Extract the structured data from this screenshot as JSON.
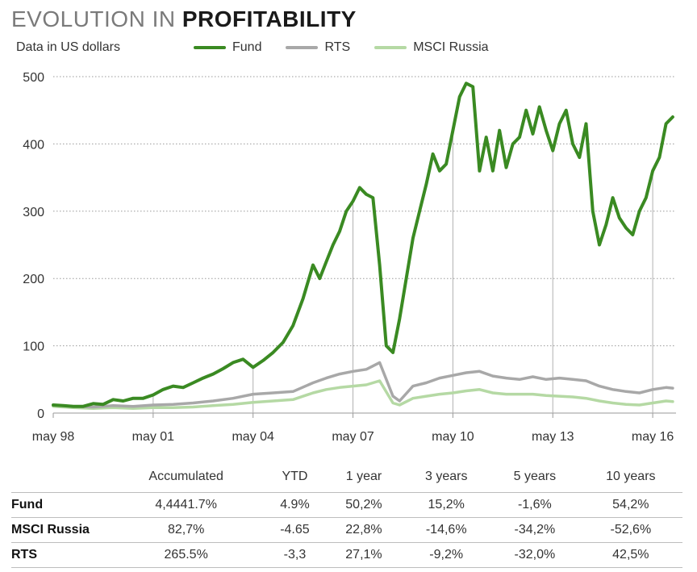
{
  "header": {
    "title_light": "EVOLUTION IN ",
    "title_bold": "PROFITABILITY",
    "subtitle": "Data in US dollars"
  },
  "colors": {
    "fund": "#3a8a22",
    "rts": "#a8a8a8",
    "msci": "#b5d9a4",
    "grid": "#9a9a9a",
    "vline": "#b0b0b0"
  },
  "chart_data": {
    "type": "line",
    "xlabel": "",
    "ylabel": "",
    "ylim": [
      0,
      500
    ],
    "yticks": [
      "0",
      "100",
      "200",
      "300",
      "400",
      "500"
    ],
    "xlim": [
      1998.4,
      2017.1
    ],
    "xticks": [
      {
        "x": 1998.4,
        "label": "may 98"
      },
      {
        "x": 2001.4,
        "label": "may 01"
      },
      {
        "x": 2004.4,
        "label": "may 04"
      },
      {
        "x": 2007.4,
        "label": "may 07"
      },
      {
        "x": 2010.4,
        "label": "may 10"
      },
      {
        "x": 2013.4,
        "label": "may 13"
      },
      {
        "x": 2016.4,
        "label": "may 16"
      }
    ],
    "grid": true,
    "legend": "top",
    "series": [
      {
        "name": "Fund",
        "x": [
          1998.4,
          1998.7,
          1999.0,
          1999.3,
          1999.6,
          1999.9,
          2000.2,
          2000.5,
          2000.8,
          2001.1,
          2001.4,
          2001.7,
          2002.0,
          2002.3,
          2002.6,
          2002.9,
          2003.2,
          2003.5,
          2003.8,
          2004.1,
          2004.4,
          2004.7,
          2005.0,
          2005.3,
          2005.6,
          2005.9,
          2006.2,
          2006.4,
          2006.6,
          2006.8,
          2007.0,
          2007.2,
          2007.4,
          2007.6,
          2007.8,
          2008.0,
          2008.2,
          2008.4,
          2008.6,
          2008.8,
          2009.0,
          2009.2,
          2009.4,
          2009.6,
          2009.8,
          2010.0,
          2010.2,
          2010.4,
          2010.6,
          2010.8,
          2011.0,
          2011.2,
          2011.4,
          2011.6,
          2011.8,
          2012.0,
          2012.2,
          2012.4,
          2012.6,
          2012.8,
          2013.0,
          2013.2,
          2013.4,
          2013.6,
          2013.8,
          2014.0,
          2014.2,
          2014.4,
          2014.6,
          2014.8,
          2015.0,
          2015.2,
          2015.4,
          2015.6,
          2015.8,
          2016.0,
          2016.2,
          2016.4,
          2016.6,
          2016.8,
          2017.0
        ],
        "values": [
          12,
          11,
          10,
          10,
          14,
          13,
          20,
          18,
          22,
          22,
          27,
          35,
          40,
          38,
          45,
          52,
          58,
          66,
          75,
          80,
          68,
          78,
          90,
          105,
          130,
          170,
          220,
          200,
          225,
          250,
          270,
          300,
          315,
          335,
          325,
          320,
          220,
          100,
          90,
          140,
          200,
          260,
          300,
          340,
          385,
          360,
          370,
          420,
          470,
          490,
          485,
          360,
          410,
          360,
          420,
          365,
          400,
          410,
          450,
          415,
          455,
          420,
          390,
          430,
          450,
          400,
          380,
          430,
          300,
          250,
          280,
          320,
          290,
          275,
          265,
          300,
          320,
          360,
          380,
          430,
          440
        ]
      },
      {
        "name": "RTS",
        "x": [
          1998.4,
          1999.0,
          1999.6,
          2000.2,
          2000.8,
          2001.4,
          2002.0,
          2002.6,
          2003.2,
          2003.8,
          2004.4,
          2005.0,
          2005.6,
          2006.2,
          2006.6,
          2007.0,
          2007.4,
          2007.8,
          2008.2,
          2008.6,
          2008.8,
          2009.2,
          2009.6,
          2010.0,
          2010.4,
          2010.8,
          2011.2,
          2011.6,
          2012.0,
          2012.4,
          2012.8,
          2013.2,
          2013.6,
          2014.0,
          2014.4,
          2014.8,
          2015.2,
          2015.6,
          2016.0,
          2016.4,
          2016.8,
          2017.0
        ],
        "values": [
          12,
          10,
          9,
          11,
          10,
          12,
          13,
          15,
          18,
          22,
          28,
          30,
          32,
          45,
          52,
          58,
          62,
          65,
          75,
          25,
          18,
          40,
          45,
          52,
          56,
          60,
          62,
          55,
          52,
          50,
          54,
          50,
          52,
          50,
          48,
          40,
          35,
          32,
          30,
          35,
          38,
          37
        ]
      },
      {
        "name": "MSCI Russia",
        "x": [
          1998.4,
          1999.0,
          1999.6,
          2000.2,
          2000.8,
          2001.4,
          2002.0,
          2002.6,
          2003.2,
          2003.8,
          2004.4,
          2005.0,
          2005.6,
          2006.2,
          2006.6,
          2007.0,
          2007.4,
          2007.8,
          2008.2,
          2008.6,
          2008.8,
          2009.2,
          2009.6,
          2010.0,
          2010.4,
          2010.8,
          2011.2,
          2011.6,
          2012.0,
          2012.4,
          2012.8,
          2013.2,
          2013.6,
          2014.0,
          2014.4,
          2014.8,
          2015.2,
          2015.6,
          2016.0,
          2016.4,
          2016.8,
          2017.0
        ],
        "values": [
          10,
          8,
          7,
          8,
          7,
          8,
          8,
          9,
          11,
          13,
          16,
          18,
          20,
          30,
          35,
          38,
          40,
          42,
          48,
          15,
          12,
          22,
          25,
          28,
          30,
          33,
          35,
          30,
          28,
          28,
          28,
          26,
          25,
          24,
          22,
          18,
          15,
          13,
          12,
          15,
          18,
          17
        ]
      }
    ]
  },
  "table": {
    "columns": [
      "",
      "Accumulated",
      "YTD",
      "1 year",
      "3 years",
      "5 years",
      "10 years"
    ],
    "rows": [
      {
        "label": "Fund",
        "cells": [
          "4,4441.7%",
          "4.9%",
          "50,2%",
          "15,2%",
          "-1,6%",
          "54,2%"
        ]
      },
      {
        "label": "MSCI Russia",
        "cells": [
          "82,7%",
          "-4.65",
          "22,8%",
          "-14,6%",
          "-34,2%",
          "-52,6%"
        ]
      },
      {
        "label": "RTS",
        "cells": [
          "265.5%",
          "-3,3",
          "27,1%",
          "-9,2%",
          "-32,0%",
          "42,5%"
        ]
      }
    ]
  }
}
